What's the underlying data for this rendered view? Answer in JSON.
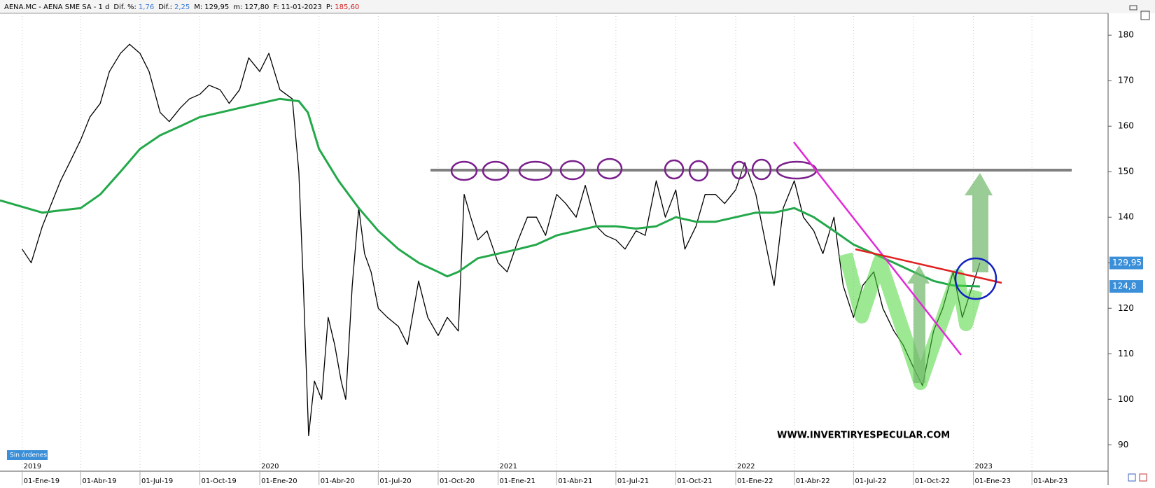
{
  "chart_data": {
    "type": "line",
    "header": {
      "symbol": "AENA.MC - AENA SME SA - 1 d",
      "items": [
        {
          "label": "Dif. %:",
          "value": "1,76",
          "color": "#3a7bd5"
        },
        {
          "label": "Dif.:",
          "value": "2,25",
          "color": "#3a7bd5"
        },
        {
          "label": "M:",
          "value": "129,95",
          "color": "#000000"
        },
        {
          "label": "m:",
          "value": "127,80",
          "color": "#000000"
        },
        {
          "label": "F:",
          "value": "11-01-2023",
          "color": "#000000"
        },
        {
          "label": "P:",
          "value": "185,60",
          "color": "#d02020"
        }
      ]
    },
    "watermark": "WWW.INVERTIRYESPECULAR.COM",
    "status": "Sin órdenes",
    "xlim": [
      "2018-11-28",
      "2023-07-27"
    ],
    "ylim": [
      84.2,
      184.8
    ],
    "yticks": [
      90,
      100,
      110,
      120,
      130,
      140,
      150,
      160,
      170,
      180
    ],
    "xticks": [
      {
        "value": "2019-01-01",
        "label": "01-Ene-19"
      },
      {
        "value": "2019-04-01",
        "label": "01-Abr-19"
      },
      {
        "value": "2019-07-01",
        "label": "01-Jul-19"
      },
      {
        "value": "2019-10-01",
        "label": "01-Oct-19"
      },
      {
        "value": "2020-01-01",
        "label": "01-Ene-20"
      },
      {
        "value": "2020-04-01",
        "label": "01-Abr-20"
      },
      {
        "value": "2020-07-01",
        "label": "01-Jul-20"
      },
      {
        "value": "2020-10-01",
        "label": "01-Oct-20"
      },
      {
        "value": "2021-01-01",
        "label": "01-Ene-21"
      },
      {
        "value": "2021-04-01",
        "label": "01-Abr-21"
      },
      {
        "value": "2021-07-01",
        "label": "01-Jul-21"
      },
      {
        "value": "2021-10-01",
        "label": "01-Oct-21"
      },
      {
        "value": "2022-01-01",
        "label": "01-Ene-22"
      },
      {
        "value": "2022-04-01",
        "label": "01-Abr-22"
      },
      {
        "value": "2022-07-01",
        "label": "01-Jul-22"
      },
      {
        "value": "2022-10-01",
        "label": "01-Oct-22"
      },
      {
        "value": "2023-01-01",
        "label": "01-Ene-23"
      },
      {
        "value": "2023-04-01",
        "label": "01-Abr-23"
      }
    ],
    "year_labels": [
      {
        "value": "2019-01-01",
        "label": "2019"
      },
      {
        "value": "2020-01-01",
        "label": "2020"
      },
      {
        "value": "2021-01-01",
        "label": "2021"
      },
      {
        "value": "2022-01-01",
        "label": "2022"
      },
      {
        "value": "2023-01-01",
        "label": "2023"
      }
    ],
    "xgrid": true,
    "price_labels": [
      {
        "value": 129.95,
        "label": "129,95",
        "color": "#3a8fd8"
      },
      {
        "value": 124.8,
        "label": "124,8",
        "color": "#3a8fd8"
      }
    ],
    "series": [
      {
        "color": "#000000",
        "width": 1.3,
        "x": [
          "2019-01-01",
          "2019-01-15",
          "2019-02-01",
          "2019-02-15",
          "2019-03-01",
          "2019-03-15",
          "2019-04-01",
          "2019-04-15",
          "2019-05-01",
          "2019-05-15",
          "2019-06-01",
          "2019-06-15",
          "2019-07-01",
          "2019-07-15",
          "2019-08-01",
          "2019-08-15",
          "2019-09-01",
          "2019-09-15",
          "2019-10-01",
          "2019-10-15",
          "2019-11-01",
          "2019-11-15",
          "2019-12-01",
          "2019-12-15",
          "2020-01-01",
          "2020-01-15",
          "2020-02-01",
          "2020-02-20",
          "2020-03-01",
          "2020-03-08",
          "2020-03-16",
          "2020-03-25",
          "2020-04-05",
          "2020-04-15",
          "2020-04-25",
          "2020-05-05",
          "2020-05-12",
          "2020-05-22",
          "2020-06-01",
          "2020-06-10",
          "2020-06-20",
          "2020-07-01",
          "2020-07-15",
          "2020-08-01",
          "2020-08-15",
          "2020-09-01",
          "2020-09-15",
          "2020-10-01",
          "2020-10-15",
          "2020-11-01",
          "2020-11-10",
          "2020-11-20",
          "2020-12-01",
          "2020-12-15",
          "2021-01-01",
          "2021-01-15",
          "2021-02-01",
          "2021-02-15",
          "2021-03-01",
          "2021-03-15",
          "2021-04-01",
          "2021-04-15",
          "2021-05-01",
          "2021-05-15",
          "2021-06-01",
          "2021-06-15",
          "2021-07-01",
          "2021-07-15",
          "2021-08-01",
          "2021-08-15",
          "2021-09-01",
          "2021-09-15",
          "2021-10-01",
          "2021-10-15",
          "2021-11-01",
          "2021-11-15",
          "2021-12-01",
          "2021-12-15",
          "2022-01-01",
          "2022-01-15",
          "2022-02-01",
          "2022-02-15",
          "2022-03-01",
          "2022-03-15",
          "2022-04-01",
          "2022-04-15",
          "2022-05-01",
          "2022-05-15",
          "2022-06-01",
          "2022-06-15",
          "2022-07-01",
          "2022-07-15",
          "2022-08-01",
          "2022-08-15",
          "2022-09-01",
          "2022-09-15",
          "2022-10-01",
          "2022-10-15",
          "2022-11-01",
          "2022-11-15",
          "2022-12-01",
          "2022-12-15",
          "2023-01-11"
        ],
        "values": [
          133,
          130,
          138,
          143,
          148,
          152,
          157,
          162,
          165,
          172,
          176,
          178,
          176,
          172,
          163,
          161,
          164,
          166,
          167,
          169,
          168,
          165,
          168,
          175,
          172,
          176,
          168,
          166,
          150,
          125,
          92,
          104,
          100,
          118,
          112,
          104,
          100,
          125,
          142,
          132,
          128,
          120,
          118,
          116,
          112,
          126,
          118,
          114,
          118,
          115,
          145,
          140,
          135,
          137,
          130,
          128,
          135,
          140,
          140,
          136,
          145,
          143,
          140,
          147,
          138,
          136,
          135,
          133,
          137,
          136,
          148,
          140,
          146,
          133,
          138,
          145,
          145,
          143,
          146,
          152,
          145,
          135,
          125,
          142,
          148,
          140,
          137,
          132,
          140,
          125,
          118,
          125,
          128,
          120,
          115,
          112,
          107,
          103,
          115,
          120,
          128,
          118,
          129.95
        ]
      },
      {
        "color": "#23a84a",
        "width": 3,
        "x": [
          "2018-11-28",
          "2019-02-01",
          "2019-03-01",
          "2019-04-01",
          "2019-05-01",
          "2019-06-01",
          "2019-07-01",
          "2019-08-01",
          "2019-09-01",
          "2019-10-01",
          "2019-11-01",
          "2019-12-01",
          "2020-01-01",
          "2020-02-01",
          "2020-03-01",
          "2020-03-15",
          "2020-04-01",
          "2020-05-01",
          "2020-06-01",
          "2020-07-01",
          "2020-08-01",
          "2020-09-01",
          "2020-10-01",
          "2020-10-15",
          "2020-11-01",
          "2020-12-01",
          "2021-01-01",
          "2021-02-01",
          "2021-03-01",
          "2021-04-01",
          "2021-05-01",
          "2021-06-01",
          "2021-07-01",
          "2021-08-01",
          "2021-09-01",
          "2021-10-01",
          "2021-11-01",
          "2021-12-01",
          "2022-01-01",
          "2022-02-01",
          "2022-03-01",
          "2022-04-01",
          "2022-05-01",
          "2022-06-01",
          "2022-07-01",
          "2022-08-01",
          "2022-09-01",
          "2022-10-01",
          "2022-11-01",
          "2022-12-01",
          "2023-01-11"
        ],
        "values": [
          143.7,
          141,
          141.5,
          142,
          145,
          150,
          155,
          158,
          160,
          162,
          163,
          164,
          165,
          166,
          165.5,
          163,
          155,
          148,
          142,
          137,
          133,
          130,
          128,
          127,
          128,
          131,
          132,
          133,
          134,
          136,
          137,
          138,
          138,
          137.5,
          138,
          140,
          139,
          139,
          140,
          141,
          141,
          142,
          140,
          137,
          134,
          132,
          130,
          128,
          126,
          125,
          124.8
        ]
      }
    ]
  }
}
